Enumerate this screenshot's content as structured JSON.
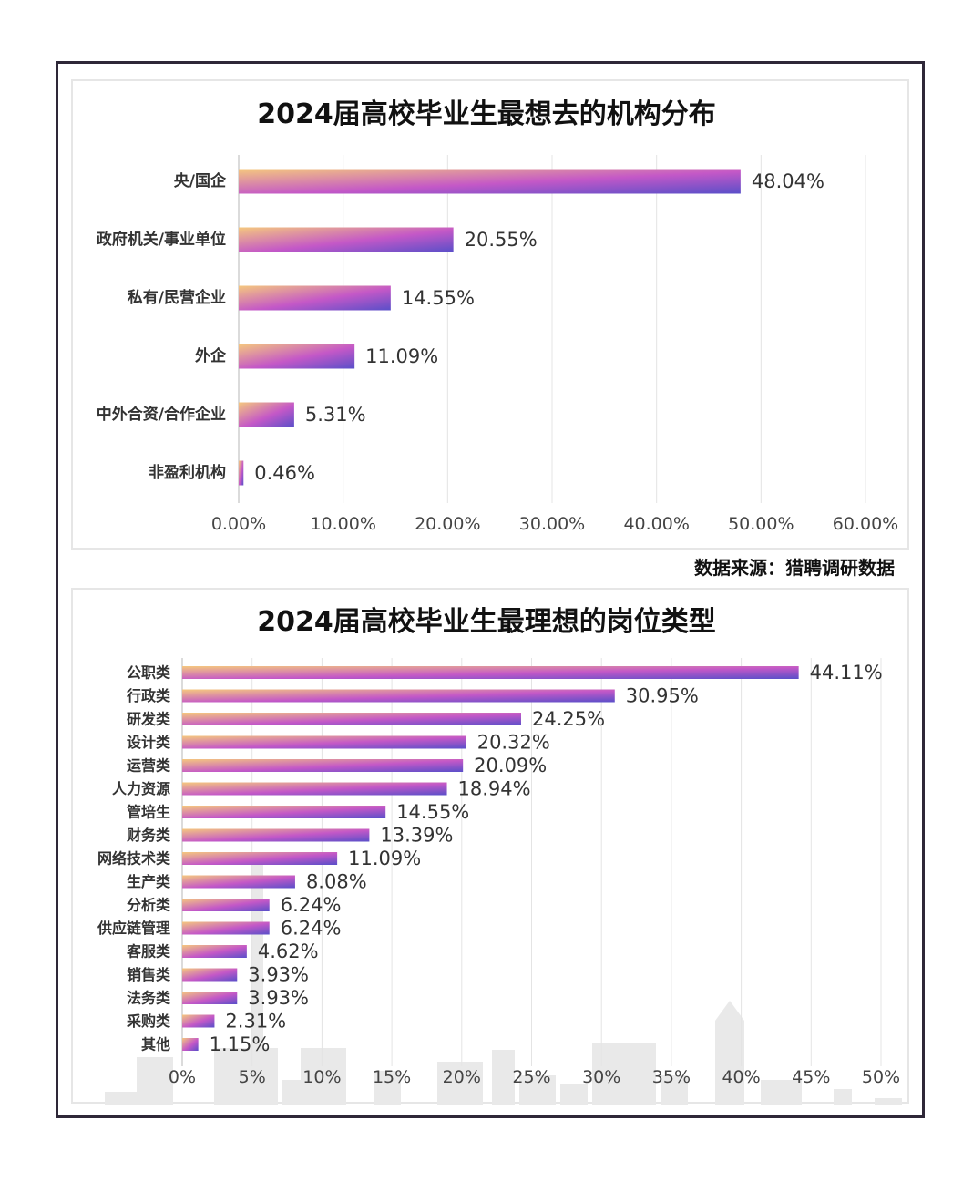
{
  "source": "数据来源：猎聘调研数据",
  "colors": {
    "gradient_start": "#f5c87e",
    "gradient_mid": "#c458c7",
    "gradient_end": "#5a4fc9",
    "grid": "#e4e4e4",
    "skyline": "#e9e9e9"
  },
  "chart_data": [
    {
      "type": "bar",
      "orientation": "horizontal",
      "title": "2024届高校毕业生最想去的机构分布",
      "categories": [
        "央/国企",
        "政府机关/事业单位",
        "私有/民营企业",
        "外企",
        "中外合资/合作企业",
        "非盈利机构"
      ],
      "values": [
        48.04,
        20.55,
        14.55,
        11.09,
        5.31,
        0.46
      ],
      "value_labels": [
        "48.04%",
        "20.55%",
        "14.55%",
        "11.09%",
        "5.31%",
        "0.46%"
      ],
      "xlim": [
        0,
        60
      ],
      "xticks": [
        0,
        10,
        20,
        30,
        40,
        50,
        60
      ],
      "xtick_labels": [
        "0.00%",
        "10.00%",
        "20.00%",
        "30.00%",
        "40.00%",
        "50.00%",
        "60.00%"
      ],
      "grid": true
    },
    {
      "type": "bar",
      "orientation": "horizontal",
      "title": "2024届高校毕业生最理想的岗位类型",
      "categories": [
        "公职类",
        "行政类",
        "研发类",
        "设计类",
        "运营类",
        "人力资源",
        "管培生",
        "财务类",
        "网络技术类",
        "生产类",
        "分析类",
        "供应链管理",
        "客服类",
        "销售类",
        "法务类",
        "采购类",
        "其他"
      ],
      "values": [
        44.11,
        30.95,
        24.25,
        20.32,
        20.09,
        18.94,
        14.55,
        13.39,
        11.09,
        8.08,
        6.24,
        6.24,
        4.62,
        3.93,
        3.93,
        2.31,
        1.15
      ],
      "value_labels": [
        "44.11%",
        "30.95%",
        "24.25%",
        "20.32%",
        "20.09%",
        "18.94%",
        "14.55%",
        "13.39%",
        "11.09%",
        "8.08%",
        "6.24%",
        "6.24%",
        "4.62%",
        "3.93%",
        "3.93%",
        "2.31%",
        "1.15%"
      ],
      "xlim": [
        0,
        50
      ],
      "xticks": [
        0,
        5,
        10,
        15,
        20,
        25,
        30,
        35,
        40,
        45,
        50
      ],
      "xtick_labels": [
        "0%",
        "5%",
        "10%",
        "15%",
        "20%",
        "25%",
        "30%",
        "35%",
        "40%",
        "45%",
        "50%"
      ],
      "grid": true
    }
  ]
}
